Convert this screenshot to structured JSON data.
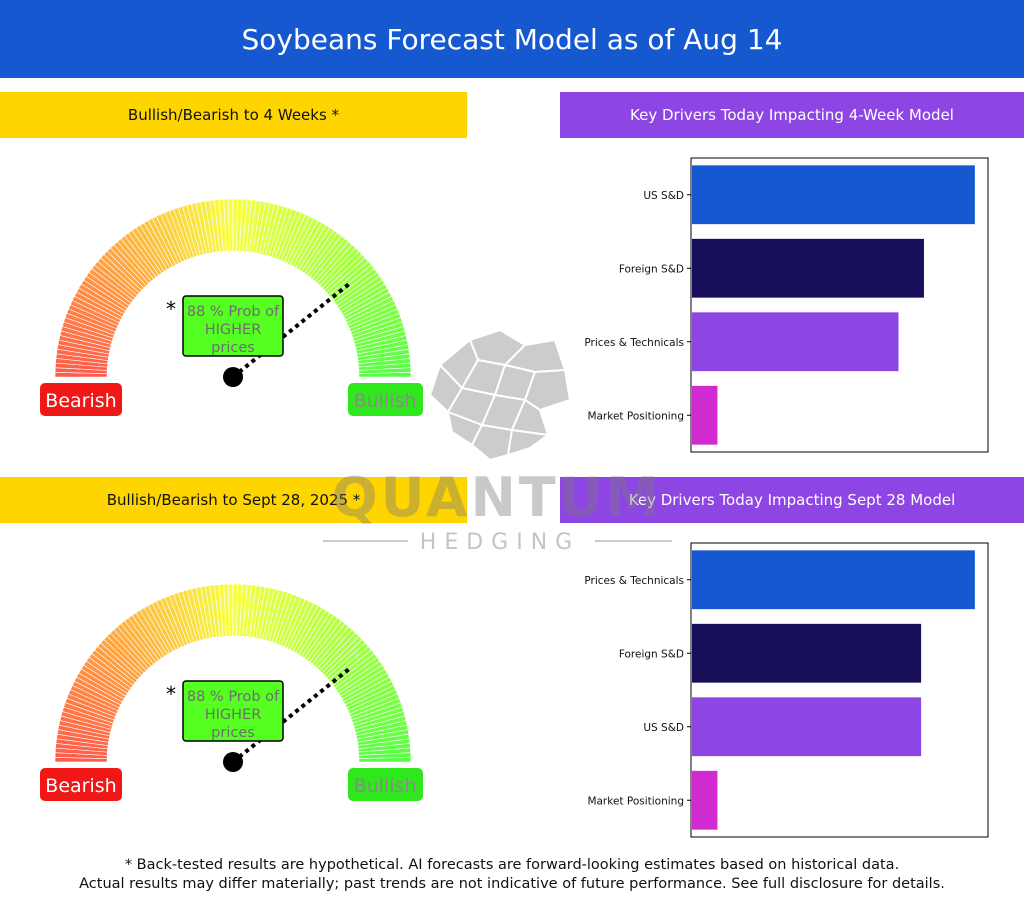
{
  "title": "Soybeans Forecast Model as of Aug 14",
  "sections": [
    {
      "gauge_header": "Bullish/Bearish to 4 Weeks *",
      "drivers_header": "Key Drivers Today Impacting 4-Week Model",
      "gauge": {
        "asterisk": "*",
        "prob_lines": [
          "88 % Prob of",
          "HIGHER",
          "prices"
        ],
        "probability": 88,
        "direction": "HIGHER",
        "bearish_label": "Bearish",
        "bullish_label": "Bullish"
      }
    },
    {
      "gauge_header": "Bullish/Bearish to Sept 28, 2025 *",
      "drivers_header": "Key Drivers Today Impacting Sept 28 Model",
      "gauge": {
        "asterisk": "*",
        "prob_lines": [
          "88 % Prob of",
          "HIGHER",
          "prices"
        ],
        "probability": 88,
        "direction": "HIGHER",
        "bearish_label": "Bearish",
        "bullish_label": "Bullish"
      }
    }
  ],
  "chart_data": [
    {
      "type": "bar",
      "orientation": "horizontal",
      "title": "Key Drivers Today Impacting 4-Week Model",
      "categories": [
        "US S&D",
        "Foreign S&D",
        "Prices & Technicals",
        "Market Positioning"
      ],
      "values": [
        1.0,
        0.82,
        0.73,
        0.09
      ],
      "colors": [
        "#1558d0",
        "#170f59",
        "#8d45e4",
        "#d12ad1"
      ],
      "xlim": [
        0,
        1.05
      ],
      "grid": false
    },
    {
      "type": "bar",
      "orientation": "horizontal",
      "title": "Key Drivers Today Impacting Sept 28 Model",
      "categories": [
        "Prices & Technicals",
        "Foreign S&D",
        "US S&D",
        "Market Positioning"
      ],
      "values": [
        1.0,
        0.81,
        0.81,
        0.09
      ],
      "colors": [
        "#1558d0",
        "#170f59",
        "#8d45e4",
        "#d12ad1"
      ],
      "xlim": [
        0,
        1.05
      ],
      "grid": false
    }
  ],
  "watermark": {
    "brand": "QUANTUM",
    "sub": "HEDGING"
  },
  "footer": [
    "* Back-tested results are hypothetical. AI forecasts are forward-looking estimates based on historical data.",
    "Actual results may differ materially; past trends are not indicative of future performance. See full disclosure for details."
  ]
}
